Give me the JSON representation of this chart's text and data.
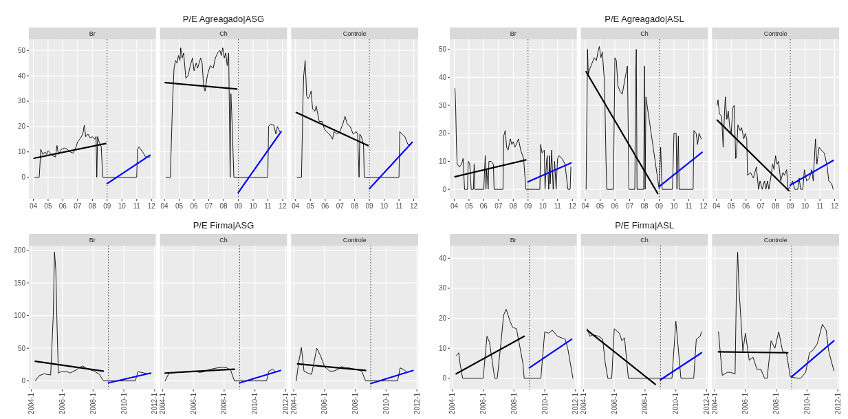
{
  "chart_data": [
    {
      "type": "line",
      "subtitle": "Br",
      "xlim": [
        2003.7,
        2012.3
      ],
      "xticks": [
        {
          "value": 2004,
          "label": "04"
        },
        {
          "value": 2005,
          "label": "05"
        },
        {
          "value": 2006,
          "label": "06"
        },
        {
          "value": 2007,
          "label": "07"
        },
        {
          "value": 2008,
          "label": "08"
        },
        {
          "value": 2009,
          "label": "09"
        },
        {
          "value": 2010,
          "label": "10"
        },
        {
          "value": 2011,
          "label": "11"
        },
        {
          "value": 2012,
          "label": "12"
        }
      ],
      "ylim": [
        -8.5,
        54.4
      ],
      "yticks": [
        0,
        10,
        20,
        30,
        40,
        50
      ],
      "grid": true,
      "ref_lines": [
        {
          "axis": "x",
          "value": 2009,
          "color": "#000000",
          "line_style": "dotted"
        }
      ],
      "series": [
        {
          "color": "#000000",
          "x": [
            2004.1,
            2004.4,
            2004.45,
            2004.5,
            2004.65,
            2004.8,
            2004.9,
            2005.0,
            2005.15,
            2005.3,
            2005.5,
            2005.6,
            2005.7,
            2005.9,
            2006.1,
            2006.3,
            2006.5,
            2006.7,
            2006.9,
            2007.0,
            2007.2,
            2007.35,
            2007.45,
            2007.55,
            2007.7,
            2007.85,
            2008.0,
            2008.15,
            2008.25,
            2008.3,
            2008.35,
            2008.45,
            2008.6,
            2008.7,
            2008.9,
            2009.5,
            2010.5,
            2011.0,
            2011.05,
            2011.15,
            2011.4,
            2011.6,
            2011.75,
            2011.9
          ],
          "values": [
            0,
            0,
            5,
            11,
            9,
            10,
            9,
            10.5,
            9.5,
            8.5,
            8,
            12.5,
            9,
            11,
            11.5,
            11,
            10,
            9.5,
            12,
            14,
            15.5,
            17,
            20.5,
            16,
            17,
            15.5,
            16,
            15,
            16,
            0,
            16,
            14,
            12,
            0,
            0,
            0,
            0,
            0,
            11,
            12,
            10,
            8,
            8,
            8
          ]
        },
        {
          "color": "#000000",
          "x": [
            2004.05,
            2008.9
          ],
          "values": [
            7.5,
            13.3
          ]
        },
        {
          "color": "#0000ff",
          "x": [
            2009,
            2011.9
          ],
          "values": [
            -2.5,
            8.7
          ]
        }
      ]
    },
    {
      "type": "line",
      "title": "P/E Agreagado|ASG",
      "subtitle": "Ch",
      "xlim": [
        2003.7,
        2012.3
      ],
      "xticks": [
        {
          "value": 2004,
          "label": "04"
        },
        {
          "value": 2005,
          "label": "05"
        },
        {
          "value": 2006,
          "label": "06"
        },
        {
          "value": 2007,
          "label": "07"
        },
        {
          "value": 2008,
          "label": "08"
        },
        {
          "value": 2009,
          "label": "09"
        },
        {
          "value": 2010,
          "label": "10"
        },
        {
          "value": 2011,
          "label": "11"
        },
        {
          "value": 2012,
          "label": "12"
        }
      ],
      "ylim": [
        -8.5,
        54.4
      ],
      "yticks": [
        0,
        10,
        20,
        30,
        40,
        50
      ],
      "tick_labels": "x",
      "grid": true,
      "ref_lines": [
        {
          "axis": "x",
          "value": 2009,
          "color": "#000000",
          "line_style": "dotted"
        }
      ],
      "series": [
        {
          "color": "#000000",
          "x": [
            2004.1,
            2004.4,
            2004.55,
            2004.65,
            2004.75,
            2004.85,
            2004.95,
            2005.05,
            2005.1,
            2005.2,
            2005.3,
            2005.45,
            2005.6,
            2005.75,
            2005.9,
            2006.0,
            2006.15,
            2006.25,
            2006.45,
            2006.55,
            2006.65,
            2006.75,
            2006.9,
            2007.1,
            2007.3,
            2007.45,
            2007.6,
            2007.75,
            2007.85,
            2007.95,
            2008.05,
            2008.15,
            2008.25,
            2008.35,
            2008.45,
            2008.5,
            2008.55,
            2008.6,
            2008.7,
            2009,
            2010,
            2011,
            2011.05,
            2011.2,
            2011.4,
            2011.55,
            2011.65,
            2011.8
          ],
          "values": [
            0,
            0,
            30,
            43,
            46,
            45,
            48,
            46,
            51,
            47,
            49,
            39,
            40,
            44,
            47,
            42,
            45,
            43,
            47,
            45,
            36,
            34,
            40,
            44,
            43,
            47,
            49,
            50,
            48,
            51,
            47,
            49,
            44,
            49,
            0,
            33,
            26,
            18,
            0,
            0,
            0,
            0,
            20,
            21,
            20.5,
            17,
            20,
            18
          ]
        },
        {
          "color": "#000000",
          "x": [
            2004.05,
            2008.9
          ],
          "values": [
            37.3,
            34.8
          ]
        },
        {
          "color": "#0000ff",
          "x": [
            2009,
            2011.9
          ],
          "values": [
            -6,
            18
          ]
        }
      ]
    },
    {
      "type": "line",
      "subtitle": "Controle",
      "xlim": [
        2003.7,
        2012.3
      ],
      "xticks": [
        {
          "value": 2004,
          "label": "04"
        },
        {
          "value": 2005,
          "label": "05"
        },
        {
          "value": 2006,
          "label": "06"
        },
        {
          "value": 2007,
          "label": "07"
        },
        {
          "value": 2008,
          "label": "08"
        },
        {
          "value": 2009,
          "label": "09"
        },
        {
          "value": 2010,
          "label": "10"
        },
        {
          "value": 2011,
          "label": "11"
        },
        {
          "value": 2012,
          "label": "12"
        }
      ],
      "ylim": [
        -8.5,
        54.4
      ],
      "yticks": [
        0,
        10,
        20,
        30,
        40,
        50
      ],
      "tick_labels": "x",
      "grid": true,
      "ref_lines": [
        {
          "axis": "x",
          "value": 2009,
          "color": "#000000",
          "line_style": "dotted"
        }
      ],
      "series": [
        {
          "color": "#000000",
          "x": [
            2004.1,
            2004.4,
            2004.5,
            2004.55,
            2004.65,
            2004.75,
            2004.85,
            2004.95,
            2005.05,
            2005.15,
            2005.3,
            2005.4,
            2005.5,
            2005.6,
            2005.8,
            2005.95,
            2006.1,
            2006.3,
            2006.5,
            2006.6,
            2006.8,
            2007.0,
            2007.2,
            2007.35,
            2007.5,
            2007.7,
            2007.9,
            2008.1,
            2008.2,
            2008.3,
            2008.35,
            2008.45,
            2008.6,
            2008.65,
            2009,
            2010,
            2011,
            2011.05,
            2011.2,
            2011.4,
            2011.6,
            2011.75
          ],
          "values": [
            0,
            0,
            30,
            40,
            46,
            32,
            31,
            32,
            34,
            27,
            26,
            28,
            25,
            22,
            22,
            19,
            18,
            17,
            15,
            18,
            17,
            18,
            21,
            24,
            21,
            20,
            17,
            18,
            17,
            0,
            17,
            16,
            13,
            0,
            0,
            0,
            0,
            18,
            17,
            16,
            13,
            13
          ]
        },
        {
          "color": "#000000",
          "x": [
            2004.05,
            2008.9
          ],
          "values": [
            25.5,
            12.5
          ]
        },
        {
          "color": "#0000ff",
          "x": [
            2009,
            2011.9
          ],
          "values": [
            -4.5,
            13.8
          ]
        }
      ]
    },
    {
      "type": "line",
      "subtitle": "Br",
      "xlim": [
        2003.7,
        2012.3
      ],
      "xticks": [
        {
          "value": 2004,
          "label": "04"
        },
        {
          "value": 2005,
          "label": "05"
        },
        {
          "value": 2006,
          "label": "06"
        },
        {
          "value": 2007,
          "label": "07"
        },
        {
          "value": 2008,
          "label": "08"
        },
        {
          "value": 2009,
          "label": "09"
        },
        {
          "value": 2010,
          "label": "10"
        },
        {
          "value": 2011,
          "label": "11"
        },
        {
          "value": 2012,
          "label": "12"
        }
      ],
      "ylim": [
        -3.4,
        53.6
      ],
      "yticks": [
        0,
        10,
        20,
        30,
        40,
        50
      ],
      "grid": true,
      "ref_lines": [
        {
          "axis": "x",
          "value": 2009,
          "color": "#000000",
          "line_style": "dotted"
        }
      ],
      "series": [
        {
          "color": "#000000",
          "x": [
            2004.05,
            2004.1,
            2004.15,
            2004.2,
            2004.35,
            2004.5,
            2004.6,
            2004.7,
            2004.9,
            2004.95,
            2005.05,
            2005.15,
            2005.3,
            2005.35,
            2005.4,
            2005.8,
            2006.0,
            2006.1,
            2006.15,
            2006.2,
            2006.3,
            2006.35,
            2006.5,
            2006.65,
            2006.7,
            2007.3,
            2007.35,
            2007.45,
            2007.55,
            2007.65,
            2007.8,
            2007.9,
            2008.0,
            2008.1,
            2008.2,
            2008.35,
            2008.5,
            2008.7,
            2008.85,
            2009.5,
            2009.8,
            2009.85,
            2009.95,
            2010.1,
            2010.15,
            2010.25,
            2010.3,
            2010.4,
            2010.45,
            2010.5,
            2010.6,
            2010.7,
            2010.8,
            2010.9,
            2011.0,
            2011.1,
            2011.3,
            2011.5,
            2011.7,
            2011.85,
            2011.9
          ],
          "values": [
            36,
            29,
            16,
            9,
            8,
            9,
            11,
            0,
            0,
            10,
            9,
            0,
            0,
            9,
            0,
            0,
            0,
            12,
            0,
            7,
            0,
            10,
            10,
            9,
            0,
            0,
            19,
            21,
            15,
            14,
            18,
            16,
            17,
            15,
            16,
            18,
            14,
            11,
            0,
            0,
            0,
            16,
            13,
            14,
            0,
            10,
            12,
            0,
            12,
            2,
            14,
            0,
            10,
            0,
            11,
            12,
            11,
            9,
            0,
            0,
            8
          ]
        },
        {
          "color": "#000000",
          "x": [
            2004.05,
            2008.85
          ],
          "values": [
            4.5,
            10.5
          ]
        },
        {
          "color": "#0000ff",
          "x": [
            2009,
            2011.9
          ],
          "values": [
            2.7,
            9.4
          ]
        }
      ]
    },
    {
      "type": "line",
      "title": "P/E Agreagado|ASL",
      "subtitle": "Ch",
      "xlim": [
        2003.7,
        2012.3
      ],
      "xticks": [
        {
          "value": 2004,
          "label": "04"
        },
        {
          "value": 2005,
          "label": "05"
        },
        {
          "value": 2006,
          "label": "06"
        },
        {
          "value": 2007,
          "label": "07"
        },
        {
          "value": 2008,
          "label": "08"
        },
        {
          "value": 2009,
          "label": "09"
        },
        {
          "value": 2010,
          "label": "10"
        },
        {
          "value": 2011,
          "label": "11"
        },
        {
          "value": 2012,
          "label": "12"
        }
      ],
      "ylim": [
        -3.4,
        53.6
      ],
      "yticks": [
        0,
        10,
        20,
        30,
        40,
        50
      ],
      "tick_labels": "x",
      "grid": true,
      "ref_lines": [
        {
          "axis": "x",
          "value": 2009,
          "color": "#000000",
          "line_style": "dotted"
        }
      ],
      "series": [
        {
          "color": "#000000",
          "x": [
            2004.05,
            2004.1,
            2004.15,
            2004.2,
            2004.3,
            2004.45,
            2004.6,
            2004.75,
            2004.85,
            2004.95,
            2005.05,
            2005.15,
            2005.3,
            2005.4,
            2005.45,
            2005.9,
            2006.0,
            2006.1,
            2006.2,
            2006.35,
            2006.5,
            2006.7,
            2006.85,
            2006.95,
            2007.35,
            2007.4,
            2007.45,
            2007.5,
            2007.95,
            2008.0,
            2008.05,
            2008.1,
            2009.0,
            2009.1,
            2009.2,
            2009.9,
            2010.0,
            2010.15,
            2010.2,
            2010.3,
            2010.35,
            2011.3,
            2011.35,
            2011.5,
            2011.6,
            2011.7,
            2011.85
          ],
          "values": [
            0,
            25,
            50,
            41,
            43,
            45,
            47,
            46,
            49,
            51,
            47,
            49,
            38,
            10,
            0,
            0,
            47,
            46,
            37,
            35,
            34,
            40,
            44,
            0,
            0,
            38,
            50,
            0,
            0,
            44,
            0,
            33,
            0,
            15,
            0,
            0,
            20,
            20,
            0,
            19,
            0,
            0,
            21,
            20,
            16,
            20,
            18
          ]
        },
        {
          "color": "#000000",
          "x": [
            2004.05,
            2008.9
          ],
          "values": [
            42,
            -1.5
          ]
        },
        {
          "color": "#0000ff",
          "x": [
            2009,
            2011.9
          ],
          "values": [
            1,
            13.2
          ]
        }
      ]
    },
    {
      "type": "line",
      "subtitle": "Controle",
      "xlim": [
        2003.7,
        2012.3
      ],
      "xticks": [
        {
          "value": 2004,
          "label": "04"
        },
        {
          "value": 2005,
          "label": "05"
        },
        {
          "value": 2006,
          "label": "06"
        },
        {
          "value": 2007,
          "label": "07"
        },
        {
          "value": 2008,
          "label": "08"
        },
        {
          "value": 2009,
          "label": "09"
        },
        {
          "value": 2010,
          "label": "10"
        },
        {
          "value": 2011,
          "label": "11"
        },
        {
          "value": 2012,
          "label": "12"
        }
      ],
      "ylim": [
        -3.4,
        53.6
      ],
      "yticks": [
        0,
        10,
        20,
        30,
        40,
        50
      ],
      "tick_labels": "x",
      "grid": true,
      "ref_lines": [
        {
          "axis": "x",
          "value": 2009,
          "color": "#000000",
          "line_style": "dotted"
        }
      ],
      "series": [
        {
          "color": "#000000",
          "x": [
            2004.05,
            2004.1,
            2004.2,
            2004.35,
            2004.45,
            2004.55,
            2004.6,
            2004.7,
            2004.8,
            2004.9,
            2005.0,
            2005.1,
            2005.2,
            2005.3,
            2005.35,
            2005.45,
            2005.6,
            2005.7,
            2005.85,
            2005.95,
            2006.05,
            2006.1,
            2006.3,
            2006.5,
            2006.7,
            2006.85,
            2006.95,
            2007.1,
            2007.25,
            2007.35,
            2007.45,
            2007.55,
            2007.7,
            2007.8,
            2007.9,
            2008.0,
            2008.1,
            2008.2,
            2008.35,
            2008.5,
            2008.6,
            2008.75,
            2008.85,
            2009.0,
            2009.15,
            2009.3,
            2009.5,
            2009.6,
            2009.7,
            2009.85,
            2009.95,
            2010.1,
            2010.3,
            2010.45,
            2010.55,
            2010.7,
            2010.8,
            2010.95,
            2011.1,
            2011.3,
            2011.5,
            2011.6,
            2011.8,
            2011.9
          ],
          "values": [
            30,
            32,
            27,
            26,
            15,
            28,
            33,
            25,
            28,
            22,
            20,
            29,
            30,
            11,
            12,
            23,
            21,
            22,
            18,
            20,
            18,
            5,
            6,
            4,
            8,
            0,
            3,
            0,
            3,
            0,
            3,
            0,
            5,
            9,
            7,
            12,
            9,
            10,
            3,
            6,
            5,
            7,
            0,
            1,
            3,
            0,
            0,
            4,
            0,
            0,
            7,
            3,
            4,
            7,
            3,
            18,
            9,
            15,
            14,
            13,
            8,
            3,
            2,
            0
          ]
        },
        {
          "color": "#000000",
          "x": [
            2004.05,
            2008.9
          ],
          "values": [
            24.7,
            -0.5
          ]
        },
        {
          "color": "#0000ff",
          "x": [
            2009,
            2011.9
          ],
          "values": [
            1.5,
            10.3
          ]
        }
      ]
    },
    {
      "type": "line",
      "subtitle": "Br",
      "xlim": [
        "2003-11",
        "2012-02"
      ],
      "xticks": [
        {
          "value": "2004-01",
          "label": "2004-1"
        },
        {
          "value": "2006-01",
          "label": "2006-1"
        },
        {
          "value": "2008-01",
          "label": "2008-1"
        },
        {
          "value": "2010-01",
          "label": "2010-1"
        },
        {
          "value": "2012-01",
          "label": "2012-1"
        }
      ],
      "ylim": [
        -13,
        207
      ],
      "yticks": [
        0,
        50,
        100,
        150,
        200
      ],
      "grid": true,
      "ref_lines": [
        {
          "axis": "x",
          "value": "2009-01",
          "color": "#000000",
          "line_style": "dotted"
        }
      ],
      "series": [
        {
          "color": "#000000",
          "x": [
            "2004-04",
            "2004-07",
            "2004-11",
            "2005-01",
            "2005-04",
            "2005-06",
            "2005-07",
            "2005-08",
            "2005-09",
            "2005-10",
            "2005-12",
            "2006-05",
            "2006-07",
            "2006-12",
            "2007-02",
            "2007-05",
            "2007-08",
            "2007-12",
            "2008-02",
            "2008-06",
            "2008-09",
            "2009-01",
            "2010-01",
            "2010-10",
            "2010-12",
            "2011-03",
            "2011-07",
            "2011-10"
          ],
          "values": [
            0,
            8,
            11,
            10,
            9,
            100,
            197,
            170,
            80,
            12,
            14,
            14,
            12,
            17,
            20,
            23,
            19,
            16,
            15,
            10,
            0,
            0,
            0,
            0,
            14,
            13,
            11,
            11
          ]
        },
        {
          "color": "#000000",
          "x": [
            "2004-04",
            "2008-09"
          ],
          "values": [
            30,
            15
          ]
        },
        {
          "color": "#0000ff",
          "x": [
            "2009-01",
            "2011-10"
          ],
          "values": [
            -3,
            12
          ]
        }
      ]
    },
    {
      "type": "line",
      "title": "P/E Firma|ASG",
      "subtitle": "Ch",
      "xlim": [
        "2003-11",
        "2012-02"
      ],
      "xticks": [
        {
          "value": "2004-01",
          "label": "2004-1"
        },
        {
          "value": "2006-01",
          "label": "2006-1"
        },
        {
          "value": "2008-01",
          "label": "2008-1"
        },
        {
          "value": "2010-01",
          "label": "2010-1"
        },
        {
          "value": "2012-01",
          "label": "2012-1"
        }
      ],
      "ylim": [
        -13,
        207
      ],
      "yticks": [
        0,
        50,
        100,
        150,
        200
      ],
      "tick_labels": "x",
      "grid": true,
      "ref_lines": [
        {
          "axis": "x",
          "value": "2009-01",
          "color": "#000000",
          "line_style": "dotted"
        }
      ],
      "series": [
        {
          "color": "#000000",
          "x": [
            "2004-03",
            "2004-06",
            "2004-11",
            "2005-03",
            "2005-07",
            "2005-11",
            "2006-02",
            "2006-06",
            "2006-09",
            "2007-01",
            "2007-05",
            "2007-08",
            "2007-12",
            "2008-03",
            "2008-06",
            "2008-09",
            "2009-01",
            "2010-01",
            "2010-10",
            "2010-12",
            "2011-03",
            "2011-05"
          ],
          "values": [
            0,
            12,
            13,
            13,
            14,
            15,
            15,
            13,
            14,
            17,
            19,
            20,
            21,
            20,
            17,
            0,
            0,
            0,
            0,
            15,
            18,
            14
          ]
        },
        {
          "color": "#000000",
          "x": [
            "2004-03",
            "2008-09"
          ],
          "values": [
            12,
            18
          ]
        },
        {
          "color": "#0000ff",
          "x": [
            "2009-01",
            "2011-09"
          ],
          "values": [
            -3,
            16
          ]
        }
      ]
    },
    {
      "type": "line",
      "subtitle": "Controle",
      "xlim": [
        "2003-11",
        "2012-02"
      ],
      "xticks": [
        {
          "value": "2004-01",
          "label": "2004-1"
        },
        {
          "value": "2006-01",
          "label": "2006-1"
        },
        {
          "value": "2008-01",
          "label": "2008-1"
        },
        {
          "value": "2010-01",
          "label": "2010-1"
        },
        {
          "value": "2012-01",
          "label": "2012-1"
        }
      ],
      "ylim": [
        -13,
        207
      ],
      "yticks": [
        0,
        50,
        100,
        150,
        200
      ],
      "tick_labels": "x",
      "grid": true,
      "ref_lines": [
        {
          "axis": "x",
          "value": "2009-01",
          "color": "#000000",
          "line_style": "dotted"
        }
      ],
      "series": [
        {
          "color": "#000000",
          "x": [
            "2004-03",
            "2004-05",
            "2004-07",
            "2004-09",
            "2004-12",
            "2005-03",
            "2005-07",
            "2005-10",
            "2006-01",
            "2006-05",
            "2006-08",
            "2006-12",
            "2007-02",
            "2007-05",
            "2007-08",
            "2007-12",
            "2008-03",
            "2008-06",
            "2008-09",
            "2009-01",
            "2010-01",
            "2010-10",
            "2010-12",
            "2011-03",
            "2011-05"
          ],
          "values": [
            0,
            30,
            51,
            15,
            12,
            10,
            50,
            38,
            22,
            15,
            15,
            18,
            22,
            20,
            20,
            18,
            17,
            15,
            0,
            0,
            0,
            0,
            20,
            17,
            14
          ]
        },
        {
          "color": "#000000",
          "x": [
            "2004-04",
            "2008-09"
          ],
          "values": [
            26,
            16
          ]
        },
        {
          "color": "#0000ff",
          "x": [
            "2009-01",
            "2011-10"
          ],
          "values": [
            -4,
            16
          ]
        }
      ]
    },
    {
      "type": "line",
      "subtitle": "Br",
      "xlim": [
        "2003-11",
        "2012-02"
      ],
      "xticks": [
        {
          "value": "2004-01",
          "label": "2004-1"
        },
        {
          "value": "2006-01",
          "label": "2006-1"
        },
        {
          "value": "2008-01",
          "label": "2008-1"
        },
        {
          "value": "2010-01",
          "label": "2010-1"
        },
        {
          "value": "2012-01",
          "label": "2012-1"
        }
      ],
      "ylim": [
        -3.7,
        44.2
      ],
      "yticks": [
        0,
        10,
        20,
        30,
        40
      ],
      "grid": true,
      "ref_lines": [
        {
          "axis": "x",
          "value": "2009-01",
          "color": "#000000",
          "line_style": "dotted"
        }
      ],
      "series": [
        {
          "color": "#000000",
          "x": [
            "2004-04",
            "2004-06",
            "2004-07",
            "2004-09",
            "2005-01",
            "2005-07",
            "2006-01",
            "2006-04",
            "2006-06",
            "2006-08",
            "2006-10",
            "2006-12",
            "2007-03",
            "2007-05",
            "2007-07",
            "2007-10",
            "2007-12",
            "2008-03",
            "2008-05",
            "2008-08",
            "2008-09",
            "2009-01",
            "2009-07",
            "2009-10",
            "2010-01",
            "2010-04",
            "2010-07",
            "2010-11",
            "2011-02",
            "2011-05",
            "2011-07",
            "2011-11"
          ],
          "values": [
            7.5,
            8.5,
            5,
            0,
            0,
            0,
            0,
            14,
            12,
            6,
            0,
            0,
            12,
            21,
            23,
            19,
            17,
            16.5,
            12,
            5,
            0,
            0,
            0,
            0,
            15.5,
            15,
            16,
            14,
            13.5,
            13,
            10,
            0
          ]
        },
        {
          "color": "#000000",
          "x": [
            "2004-04",
            "2008-09"
          ],
          "values": [
            1.5,
            14
          ]
        },
        {
          "color": "#0000ff",
          "x": [
            "2009-01",
            "2011-10"
          ],
          "values": [
            3.5,
            13
          ]
        }
      ]
    },
    {
      "type": "line",
      "title": "P/E Firma|ASL",
      "subtitle": "Ch",
      "xlim": [
        "2003-11",
        "2012-02"
      ],
      "xticks": [
        {
          "value": "2004-01",
          "label": "2004-1"
        },
        {
          "value": "2006-01",
          "label": "2006-1"
        },
        {
          "value": "2008-01",
          "label": "2008-1"
        },
        {
          "value": "2010-01",
          "label": "2010-1"
        },
        {
          "value": "2012-01",
          "label": "2012-1"
        }
      ],
      "ylim": [
        -3.7,
        44.2
      ],
      "yticks": [
        0,
        10,
        20,
        30,
        40
      ],
      "tick_labels": "x",
      "grid": true,
      "ref_lines": [
        {
          "axis": "x",
          "value": "2009-01",
          "color": "#000000",
          "line_style": "dotted"
        }
      ],
      "series": [
        {
          "color": "#000000",
          "x": [
            "2004-04",
            "2004-06",
            "2004-08",
            "2005-01",
            "2005-04",
            "2005-06",
            "2005-08",
            "2005-11",
            "2006-01",
            "2006-05",
            "2006-07",
            "2006-09",
            "2006-12",
            "2007-07",
            "2008-01",
            "2008-07",
            "2009-01",
            "2009-07",
            "2009-10",
            "2010-01",
            "2010-05",
            "2010-10",
            "2011-03",
            "2011-05",
            "2011-08",
            "2011-09"
          ],
          "values": [
            16.5,
            14,
            14.5,
            14,
            13,
            5,
            0,
            0,
            16.5,
            15,
            12.5,
            13.5,
            0,
            0,
            0,
            0,
            0,
            0,
            0,
            19,
            0,
            0,
            0,
            13,
            14,
            15.5
          ]
        },
        {
          "color": "#000000",
          "x": [
            "2004-04",
            "2008-09"
          ],
          "values": [
            16,
            -2
          ]
        },
        {
          "color": "#0000ff",
          "x": [
            "2009-01",
            "2011-09"
          ],
          "values": [
            -0.5,
            8.5
          ]
        }
      ]
    },
    {
      "type": "line",
      "subtitle": "Controle",
      "xlim": [
        "2003-11",
        "2012-02"
      ],
      "xticks": [
        {
          "value": "2004-01",
          "label": "2004-1"
        },
        {
          "value": "2006-01",
          "label": "2006-1"
        },
        {
          "value": "2008-01",
          "label": "2008-1"
        },
        {
          "value": "2010-01",
          "label": "2010-1"
        },
        {
          "value": "2012-01",
          "label": "2012-1"
        }
      ],
      "ylim": [
        -3.7,
        44.2
      ],
      "yticks": [
        0,
        10,
        20,
        30,
        40
      ],
      "tick_labels": "x",
      "grid": true,
      "ref_lines": [
        {
          "axis": "x",
          "value": "2009-01",
          "color": "#000000",
          "line_style": "dotted"
        }
      ],
      "series": [
        {
          "color": "#000000",
          "x": [
            "2004-04",
            "2004-07",
            "2004-11",
            "2005-01",
            "2005-05",
            "2005-06",
            "2005-07",
            "2005-08",
            "2005-11",
            "2006-01",
            "2006-04",
            "2006-07",
            "2006-10",
            "2007-01",
            "2007-04",
            "2007-06",
            "2007-09",
            "2007-12",
            "2008-03",
            "2008-06",
            "2008-09",
            "2008-12",
            "2009-06",
            "2009-08",
            "2009-12",
            "2010-03",
            "2010-06",
            "2010-09",
            "2011-01",
            "2011-04",
            "2011-06",
            "2011-10"
          ],
          "values": [
            15.5,
            1,
            2,
            2,
            1.5,
            30,
            42,
            30,
            9,
            15,
            6,
            7,
            3,
            3,
            0,
            0,
            12.5,
            10,
            15.5,
            9,
            8.5,
            0.5,
            0,
            0,
            2,
            8.5,
            9.5,
            11.5,
            18,
            16,
            9,
            2.5
          ]
        },
        {
          "color": "#000000",
          "x": [
            "2004-04",
            "2008-10"
          ],
          "values": [
            8.8,
            8.5
          ]
        },
        {
          "color": "#0000ff",
          "x": [
            "2009-01",
            "2011-10"
          ],
          "values": [
            0.5,
            12.5
          ]
        }
      ]
    }
  ]
}
